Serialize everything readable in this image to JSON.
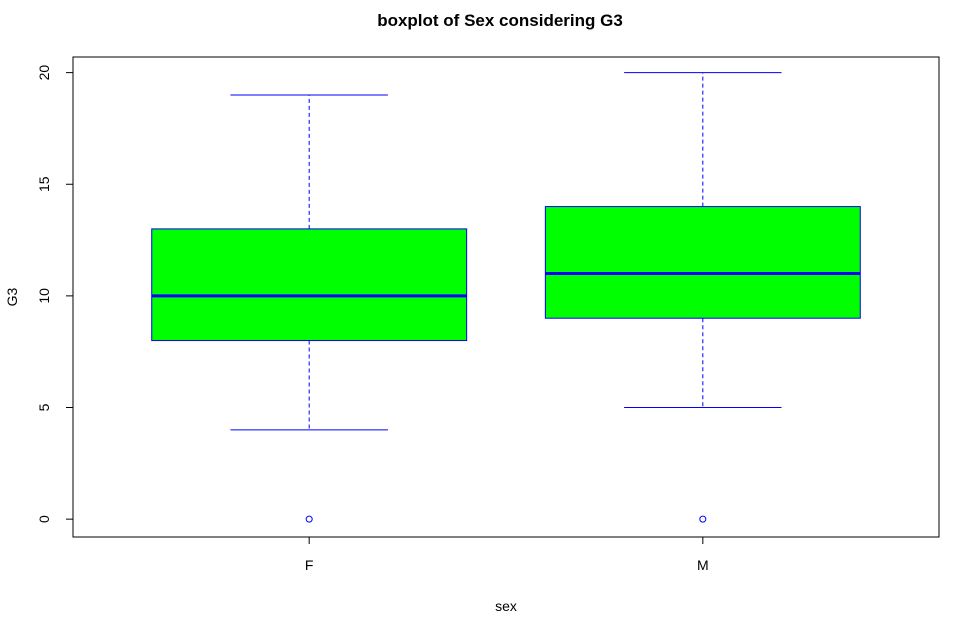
{
  "chart_data": {
    "type": "boxplot",
    "title": "boxplot of Sex considering G3",
    "xlabel": "sex",
    "ylabel": "G3",
    "ylim": [
      -0.8,
      20.7
    ],
    "yticks": [
      "0",
      "5",
      "10",
      "15",
      "20"
    ],
    "categories": [
      "F",
      "M"
    ],
    "series": [
      {
        "name": "F",
        "whisker_low": 4,
        "q1": 8,
        "median": 10,
        "q3": 13,
        "whisker_high": 19,
        "outliers": [
          0
        ]
      },
      {
        "name": "M",
        "whisker_low": 5,
        "q1": 9,
        "median": 11,
        "q3": 14,
        "whisker_high": 20,
        "outliers": [
          0
        ]
      }
    ],
    "colors": {
      "box_fill": "#00ff00",
      "stroke": "#0000ff",
      "axis": "#000000"
    }
  }
}
